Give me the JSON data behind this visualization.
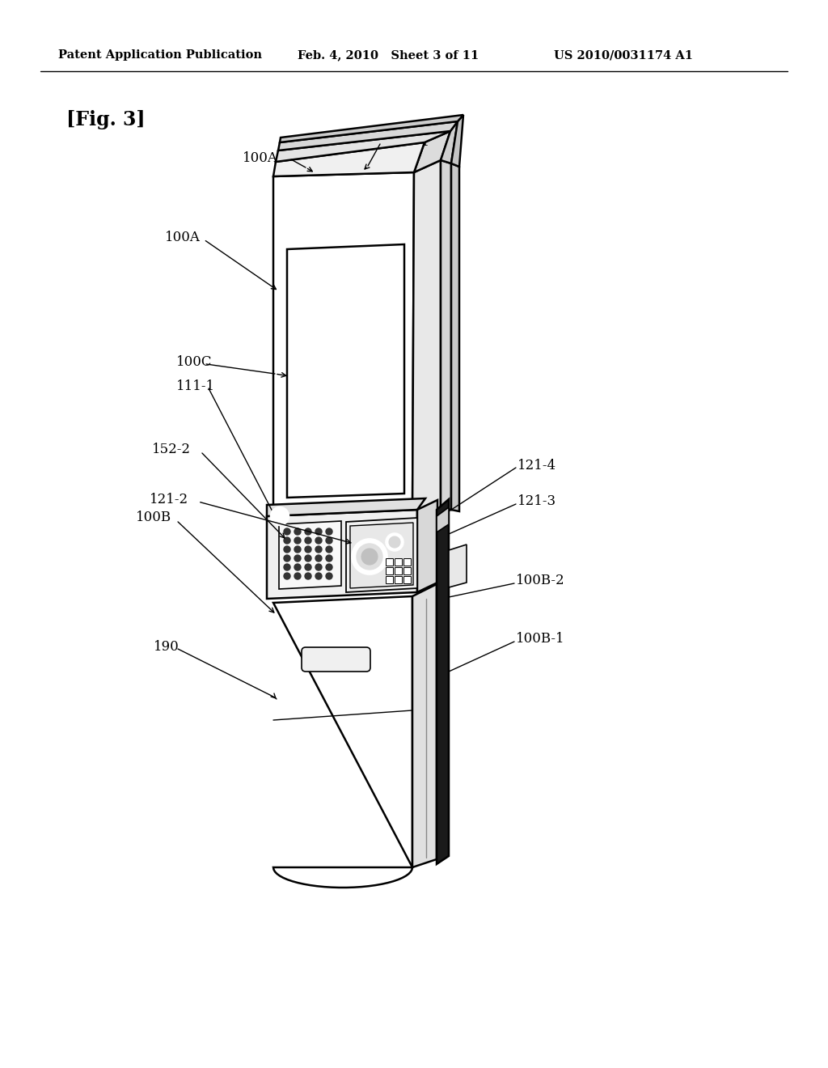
{
  "bg_color": "#ffffff",
  "line_color": "#000000",
  "header_left": "Patent Application Publication",
  "header_mid": "Feb. 4, 2010   Sheet 3 of 11",
  "header_right": "US 2010/0031174 A1",
  "fig_label": "[Fig. 3]",
  "lw_main": 1.8,
  "lw_thin": 1.0,
  "lw_thick": 3.5,
  "label_fs": 12
}
